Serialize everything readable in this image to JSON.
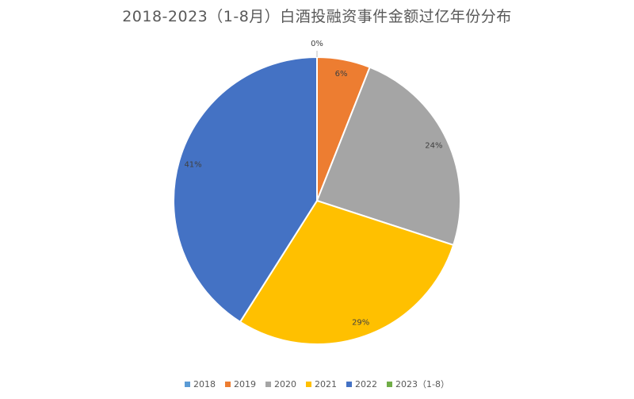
{
  "chart_data": {
    "type": "pie",
    "title": "2018-2023（1-8月）白酒投融资事件金额过亿年份分布",
    "categories": [
      "2018",
      "2019",
      "2020",
      "2021",
      "2022",
      "2023（1-8）"
    ],
    "values": [
      0,
      6,
      24,
      29,
      41,
      0
    ],
    "value_labels": [
      "0%",
      "6%",
      "24%",
      "29%",
      "41%",
      ""
    ],
    "colors": [
      "#5B9BD5",
      "#ED7D31",
      "#A5A5A5",
      "#FFC000",
      "#4472C4",
      "#70AD47"
    ],
    "legend_position": "bottom"
  }
}
